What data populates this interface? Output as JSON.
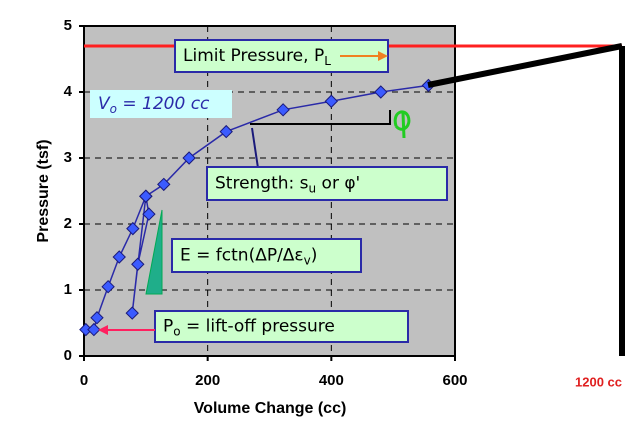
{
  "chart_data": {
    "type": "line",
    "x_label": "Volume Change (cc)",
    "y_label": "Pressure (tsf)",
    "xlim": [
      0,
      600
    ],
    "xticks": [
      0,
      200,
      400,
      600
    ],
    "ylim": [
      0,
      5
    ],
    "yticks": [
      0,
      1,
      2,
      3,
      4,
      5
    ],
    "grid": true,
    "series": [
      {
        "color": "#2a2aa8",
        "x": [
          3,
          16,
          21,
          39,
          57,
          79,
          100,
          129,
          170,
          230,
          322,
          400,
          480,
          557
        ],
        "values": [
          0.4,
          0.4,
          0.58,
          1.05,
          1.5,
          1.93,
          2.42,
          2.6,
          3.0,
          3.4,
          3.73,
          3.86,
          4.0,
          4.1
        ]
      },
      {
        "color": "#2a2aa8",
        "x": [
          100,
          105,
          87,
          78,
          100
        ],
        "values": [
          2.42,
          2.15,
          1.39,
          0.65,
          2.42
        ]
      }
    ],
    "annotations": [
      {
        "text": "Limit Pressure, P",
        "sub": "L"
      },
      {
        "text": "V",
        "sub": "o",
        "after": " = 1200 cc"
      },
      {
        "text": "Strength: s",
        "sub": "u",
        "after": " or φ'"
      },
      {
        "text": "E = fctn(ΔP/Δε",
        "sub": "v",
        "after": ")"
      },
      {
        "text": "P",
        "sub": "o",
        "after": " = lift-off pressure"
      }
    ],
    "side_label": "1200 cc"
  }
}
